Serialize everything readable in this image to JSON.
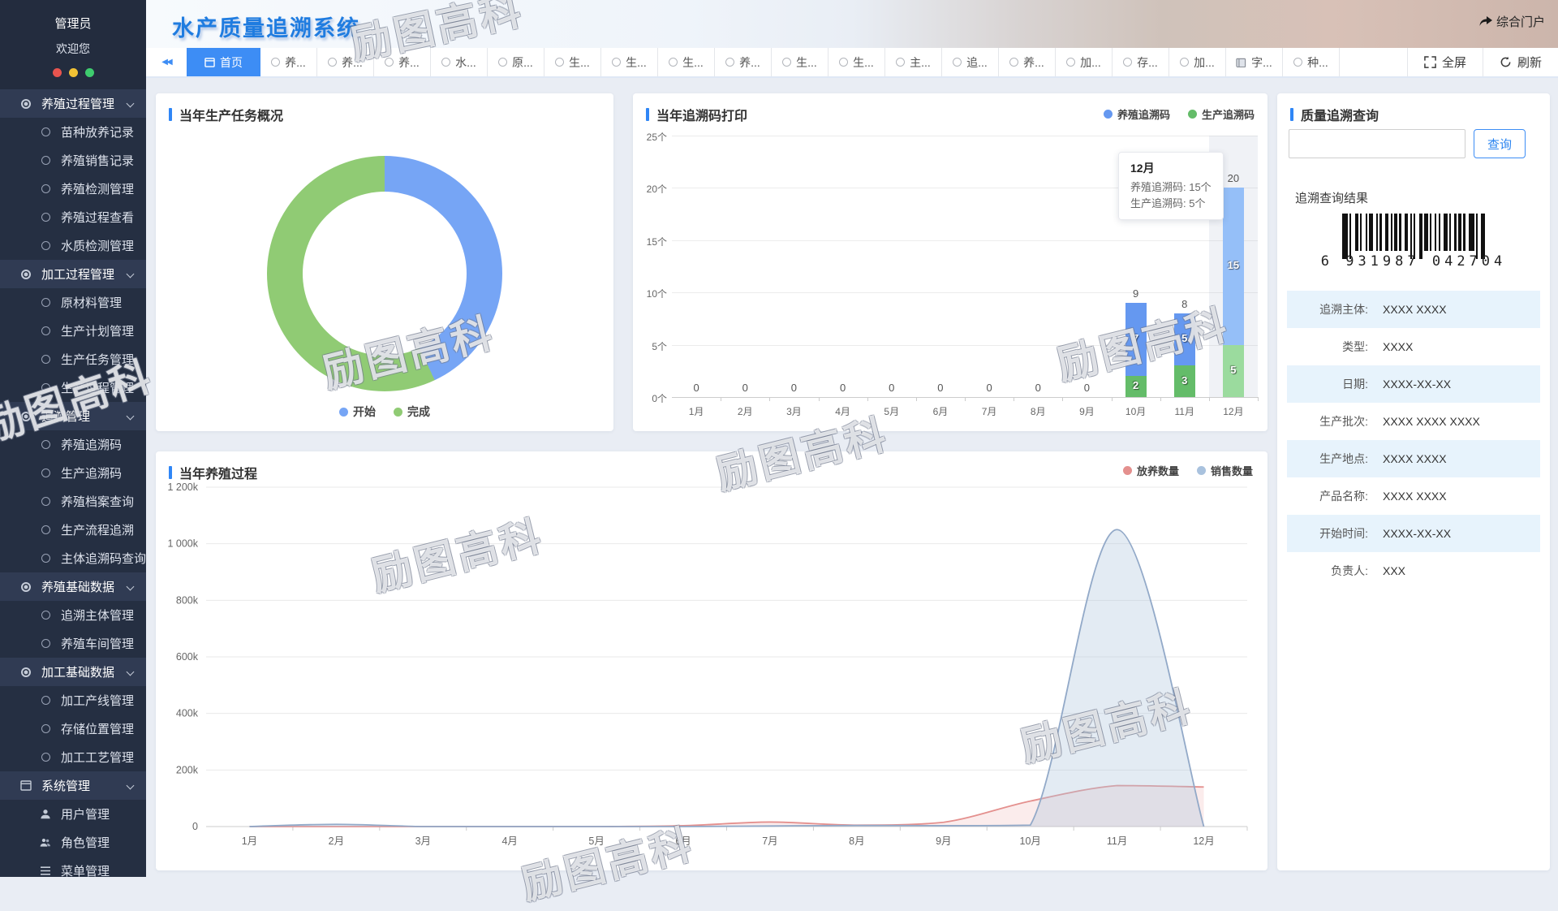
{
  "watermark": "励图高科",
  "sidebar": {
    "user": {
      "name": "管理员",
      "greeting": "欢迎您"
    },
    "dot_colors": [
      "#e8544f",
      "#f2c235",
      "#3ecc6e"
    ],
    "menu": [
      {
        "label": "养殖过程管理",
        "type": "section",
        "icon": "ring-bold",
        "expanded": true
      },
      {
        "label": "苗种放养记录",
        "type": "item",
        "icon": "ring"
      },
      {
        "label": "养殖销售记录",
        "type": "item",
        "icon": "ring"
      },
      {
        "label": "养殖检测管理",
        "type": "item",
        "icon": "ring"
      },
      {
        "label": "养殖过程查看",
        "type": "item",
        "icon": "ring"
      },
      {
        "label": "水质检测管理",
        "type": "item",
        "icon": "ring"
      },
      {
        "label": "加工过程管理",
        "type": "section",
        "icon": "ring-bold",
        "expanded": true
      },
      {
        "label": "原材料管理",
        "type": "item",
        "icon": "ring"
      },
      {
        "label": "生产计划管理",
        "type": "item",
        "icon": "ring"
      },
      {
        "label": "生产任务管理",
        "type": "item",
        "icon": "ring"
      },
      {
        "label": "生产过程管理",
        "type": "item",
        "icon": "ring"
      },
      {
        "label": "追溯管理",
        "type": "section",
        "icon": "ring-bold",
        "expanded": true
      },
      {
        "label": "养殖追溯码",
        "type": "item",
        "icon": "ring"
      },
      {
        "label": "生产追溯码",
        "type": "item",
        "icon": "ring"
      },
      {
        "label": "养殖档案查询",
        "type": "item",
        "icon": "ring"
      },
      {
        "label": "生产流程追溯",
        "type": "item",
        "icon": "ring"
      },
      {
        "label": "主体追溯码查询",
        "type": "item",
        "icon": "ring"
      },
      {
        "label": "养殖基础数据",
        "type": "section",
        "icon": "ring-bold",
        "expanded": true
      },
      {
        "label": "追溯主体管理",
        "type": "item",
        "icon": "ring"
      },
      {
        "label": "养殖车间管理",
        "type": "item",
        "icon": "ring"
      },
      {
        "label": "加工基础数据",
        "type": "section",
        "icon": "ring-bold",
        "expanded": true
      },
      {
        "label": "加工产线管理",
        "type": "item",
        "icon": "ring"
      },
      {
        "label": "存储位置管理",
        "type": "item",
        "icon": "ring"
      },
      {
        "label": "加工工艺管理",
        "type": "item",
        "icon": "ring"
      },
      {
        "label": "系统管理",
        "type": "section",
        "icon": "window",
        "expanded": true
      },
      {
        "label": "用户管理",
        "type": "item",
        "icon": "user"
      },
      {
        "label": "角色管理",
        "type": "item",
        "icon": "users"
      },
      {
        "label": "菜单管理",
        "type": "item",
        "icon": "menu"
      }
    ]
  },
  "header": {
    "title": "水产质量追溯系统",
    "portal_label": "综合门户",
    "fullscreen_label": "全屏",
    "refresh_label": "刷新",
    "tabs": [
      {
        "label": "首页",
        "icon": "window",
        "active": true
      },
      {
        "label": "养..."
      },
      {
        "label": "养..."
      },
      {
        "label": "养..."
      },
      {
        "label": "水..."
      },
      {
        "label": "原..."
      },
      {
        "label": "生..."
      },
      {
        "label": "生..."
      },
      {
        "label": "生..."
      },
      {
        "label": "养..."
      },
      {
        "label": "生..."
      },
      {
        "label": "生..."
      },
      {
        "label": "主..."
      },
      {
        "label": "追..."
      },
      {
        "label": "养..."
      },
      {
        "label": "加..."
      },
      {
        "label": "存..."
      },
      {
        "label": "加..."
      },
      {
        "label": "字...",
        "icon": "book"
      },
      {
        "label": "种..."
      }
    ]
  },
  "panels": {
    "tasks": {
      "title": "当年生产任务概况"
    },
    "codes": {
      "title": "当年追溯码打印"
    },
    "process": {
      "title": "当年养殖过程"
    },
    "query": {
      "title": "质量追溯查询",
      "search_placeholder": "",
      "search_button": "查询",
      "result_title": "追溯查询结果",
      "barcode_number": "6 931987 042704",
      "fields": [
        {
          "label": "追溯主体:",
          "value": "XXXX XXXX",
          "highlight": true
        },
        {
          "label": "类型:",
          "value": "XXXX",
          "highlight": false
        },
        {
          "label": "日期:",
          "value": "XXXX-XX-XX",
          "highlight": true
        },
        {
          "label": "生产批次:",
          "value": "XXXX XXXX XXXX",
          "highlight": false
        },
        {
          "label": "生产地点:",
          "value": "XXXX XXXX",
          "highlight": true
        },
        {
          "label": "产品名称:",
          "value": "XXXX XXXX",
          "highlight": false
        },
        {
          "label": "开始时间:",
          "value": "XXXX-XX-XX",
          "highlight": true
        },
        {
          "label": "负责人:",
          "value": "XXX",
          "highlight": false
        }
      ]
    }
  },
  "chart_data": [
    {
      "id": "tasks_donut",
      "type": "pie",
      "title": "当年生产任务概况",
      "labels": [
        "开始",
        "完成"
      ],
      "values": [
        43,
        57
      ],
      "unit": "percent",
      "colors": [
        "#76a5f5",
        "#90cb74"
      ],
      "legend_position": "bottom",
      "donut": true
    },
    {
      "id": "codes_bar",
      "type": "bar",
      "stacked": true,
      "title": "当年追溯码打印",
      "categories": [
        "1月",
        "2月",
        "3月",
        "4月",
        "5月",
        "6月",
        "7月",
        "8月",
        "9月",
        "10月",
        "11月",
        "12月"
      ],
      "series": [
        {
          "name": "生产追溯码",
          "color": "#64bc69",
          "color_light": "#9bdb9e",
          "values": [
            0,
            0,
            0,
            0,
            0,
            0,
            0,
            0,
            0,
            2,
            3,
            5
          ]
        },
        {
          "name": "养殖追溯码",
          "color": "#6598f0",
          "color_light": "#95bff8",
          "values": [
            0,
            0,
            0,
            0,
            0,
            0,
            0,
            0,
            0,
            7,
            5,
            15
          ]
        }
      ],
      "totals": [
        0,
        0,
        0,
        0,
        0,
        0,
        0,
        0,
        0,
        9,
        8,
        20
      ],
      "ytick_labels": [
        "0个",
        "5个",
        "10个",
        "15个",
        "20个",
        "25个"
      ],
      "ylim": [
        0,
        25
      ],
      "legend": [
        "养殖追溯码",
        "生产追溯码"
      ],
      "legend_colors": [
        "#6598f0",
        "#64bc69"
      ],
      "highlighted_category": "12月",
      "tooltip": {
        "title": "12月",
        "lines": [
          "养殖追溯码: 15个",
          "生产追溯码: 5个"
        ]
      }
    },
    {
      "id": "process_area",
      "type": "area",
      "title": "当年养殖过程",
      "categories": [
        "1月",
        "2月",
        "3月",
        "4月",
        "5月",
        "6月",
        "7月",
        "8月",
        "9月",
        "10月",
        "11月",
        "12月"
      ],
      "series": [
        {
          "name": "放养数量",
          "color": "#e4908e",
          "fill": "rgba(233,150,148,0.18)",
          "values": [
            0,
            0,
            0,
            0,
            0,
            3000,
            16000,
            5000,
            15000,
            90000,
            145000,
            140000
          ]
        },
        {
          "name": "销售数量",
          "color": "#92a9c8",
          "fill": "rgba(176,197,222,0.35)",
          "values": [
            0,
            8000,
            0,
            0,
            0,
            0,
            2000,
            4000,
            3000,
            5000,
            1050000,
            0
          ]
        }
      ],
      "ytick_labels": [
        "0",
        "200k",
        "400k",
        "600k",
        "800k",
        "1 000k",
        "1 200k"
      ],
      "ylim": [
        0,
        1200000
      ],
      "legend": [
        "放养数量",
        "销售数量"
      ],
      "legend_colors": [
        "#e4908e",
        "#a9c2de"
      ],
      "grid": true
    }
  ]
}
